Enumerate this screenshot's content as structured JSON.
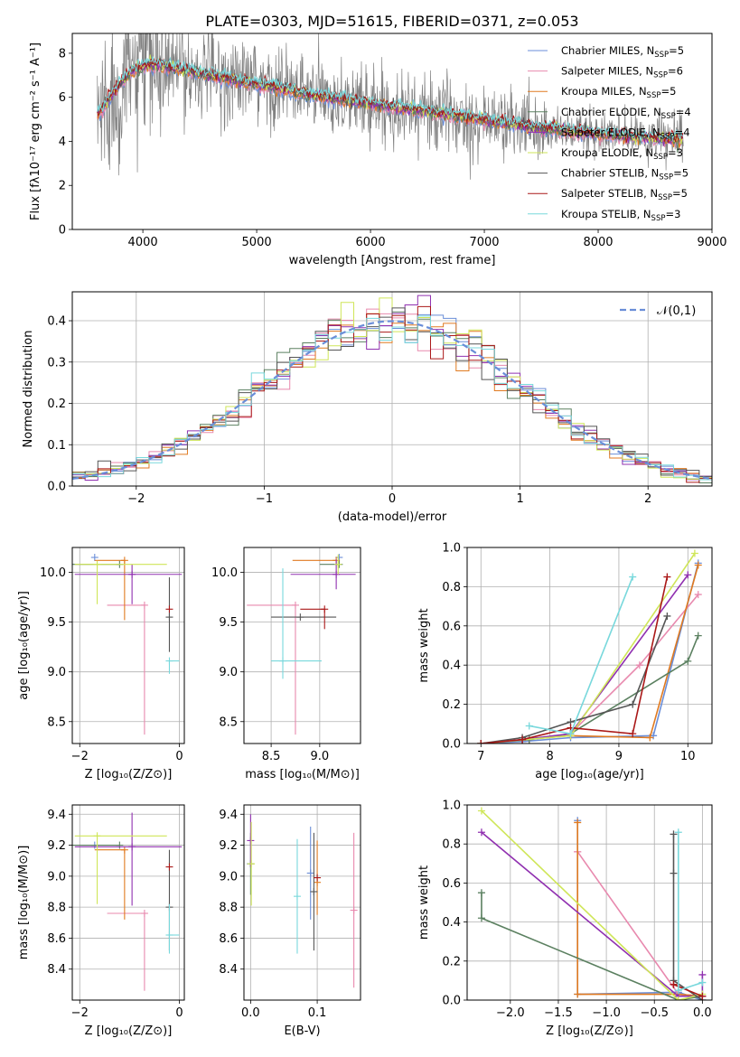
{
  "figure": {
    "title": "PLATE=0303, MJD=51615, FIBERID=0371, z=0.053"
  },
  "colors": {
    "data": "#808080",
    "models": [
      "#6a8ed8",
      "#e889ae",
      "#e07a20",
      "#5b8060",
      "#c060c8",
      "#cfe658",
      "#555555",
      "#aa1818",
      "#78d8dc"
    ],
    "series_hex": [
      "#6a8ed8",
      "#e889ae",
      "#e07a20",
      "#5b8060",
      "#9030b0",
      "#cfe658",
      "#555555",
      "#aa1818",
      "#78d8dc"
    ]
  },
  "chart_data": [
    {
      "id": "spectrum",
      "type": "line",
      "title": "PLATE=0303, MJD=51615, FIBERID=0371, z=0.053",
      "xlabel": "wavelength [Angstrom, rest frame]",
      "ylabel": "Flux [fλ10⁻¹⁷ erg cm⁻² s⁻¹ A⁻¹]",
      "xlim": [
        3380,
        9000
      ],
      "ylim": [
        0,
        8.9
      ],
      "xticks": [
        4000,
        5000,
        6000,
        7000,
        8000,
        9000
      ],
      "yticks": [
        0,
        2,
        4,
        6,
        8
      ],
      "grid": false,
      "legend_position": "top-right",
      "continuum": {
        "x": [
          3600,
          3700,
          3800,
          3900,
          4000,
          4100,
          4300,
          4500,
          4700,
          4900,
          5100,
          5300,
          5500,
          5700,
          5900,
          6100,
          6300,
          6500,
          6700,
          6900,
          7100,
          7300,
          7500,
          7700,
          7900,
          8100,
          8300,
          8500,
          8750
        ],
        "y": [
          5.2,
          5.9,
          6.6,
          7.2,
          7.4,
          7.5,
          7.3,
          7.1,
          6.9,
          6.7,
          6.5,
          6.3,
          6.1,
          5.95,
          5.8,
          5.65,
          5.5,
          5.35,
          5.2,
          5.05,
          4.9,
          4.75,
          4.6,
          4.5,
          4.4,
          4.3,
          4.2,
          4.15,
          4.1
        ]
      },
      "series": [
        {
          "name": "Chabrier MILES, N_SSP=5"
        },
        {
          "name": "Salpeter MILES, N_SSP=6"
        },
        {
          "name": "Kroupa MILES, N_SSP=5"
        },
        {
          "name": "Chabrier ELODIE, N_SSP=4"
        },
        {
          "name": "Salpeter ELODIE, N_SSP=4"
        },
        {
          "name": "Kroupa ELODIE, N_SSP=3"
        },
        {
          "name": "Chabrier STELIB, N_SSP=5"
        },
        {
          "name": "Salpeter STELIB, N_SSP=5"
        },
        {
          "name": "Kroupa STELIB, N_SSP=3"
        }
      ],
      "legend_labels": [
        {
          "base": "Chabrier MILES, N",
          "sub": "SSP",
          "tail": "=5"
        },
        {
          "base": "Salpeter MILES, N",
          "sub": "SSP",
          "tail": "=6"
        },
        {
          "base": "Kroupa MILES, N",
          "sub": "SSP",
          "tail": "=5"
        },
        {
          "base": "Chabrier ELODIE, N",
          "sub": "SSP",
          "tail": "=4"
        },
        {
          "base": "Salpeter ELODIE, N",
          "sub": "SSP",
          "tail": "=4"
        },
        {
          "base": "Kroupa ELODIE, N",
          "sub": "SSP",
          "tail": "=3"
        },
        {
          "base": "Chabrier STELIB, N",
          "sub": "SSP",
          "tail": "=5"
        },
        {
          "base": "Salpeter STELIB, N",
          "sub": "SSP",
          "tail": "=5"
        },
        {
          "base": "Kroupa STELIB, N",
          "sub": "SSP",
          "tail": "=3"
        }
      ]
    },
    {
      "id": "residuals",
      "type": "line",
      "xlabel": "(data-model)/error",
      "ylabel": "Normed distribution",
      "xlim": [
        -2.5,
        2.5
      ],
      "ylim": [
        0,
        0.47
      ],
      "xticks": [
        -2,
        -1,
        0,
        1,
        2
      ],
      "yticks": [
        0.0,
        0.1,
        0.2,
        0.3,
        0.4
      ],
      "grid": true,
      "legend_position": "top-right",
      "reference_curve": {
        "name": "𝒩(0,1)",
        "mean": 0,
        "sigma": 1
      },
      "bin_width": 0.1,
      "x_range": [
        -2.5,
        2.5
      ]
    },
    {
      "id": "age_vs_Z",
      "type": "scatter",
      "xlabel": "Z [log₁₀(Z/Z⊙)]",
      "ylabel": "age  [log₁₀(age/yr)]",
      "xlim": [
        -2.15,
        0.1
      ],
      "ylim": [
        8.28,
        10.25
      ],
      "xticks": [
        -2,
        0
      ],
      "yticks": [
        8.5,
        9.0,
        9.5,
        10.0
      ],
      "grid": true,
      "points": [
        {
          "x": -1.7,
          "y": 10.15,
          "xerr": [
            0.0,
            0.0
          ],
          "yerr": [
            0.0,
            0.0
          ]
        },
        {
          "x": -0.7,
          "y": 9.67,
          "xerr": [
            0.75,
            0.0
          ],
          "yerr": [
            1.3,
            0.0
          ]
        },
        {
          "x": -1.1,
          "y": 10.12,
          "xerr": [
            0.6,
            0.0
          ],
          "yerr": [
            0.6,
            0.0
          ]
        },
        {
          "x": -1.2,
          "y": 10.08,
          "xerr": [
            0.95,
            0.0
          ],
          "yerr": [
            0.0,
            0.0
          ]
        },
        {
          "x": -0.95,
          "y": 9.98,
          "xerr": [
            1.15,
            1.0
          ],
          "yerr": [
            0.3,
            0.1
          ]
        },
        {
          "x": -1.65,
          "y": 10.08,
          "xerr": [
            0.45,
            1.4
          ],
          "yerr": [
            0.4,
            0.0
          ]
        },
        {
          "x": -0.2,
          "y": 9.55,
          "xerr": [
            0.0,
            0.0
          ],
          "yerr": [
            0.35,
            0.4
          ]
        },
        {
          "x": -0.2,
          "y": 9.63,
          "xerr": [
            0.0,
            0.0
          ],
          "yerr": [
            0.0,
            0.0
          ]
        },
        {
          "x": -0.2,
          "y": 9.11,
          "xerr": [
            0.0,
            0.2
          ],
          "yerr": [
            0.13,
            0.0
          ]
        }
      ]
    },
    {
      "id": "age_vs_mass",
      "type": "scatter",
      "xlabel": "mass [log₁₀(M/M⊙)]",
      "ylabel": "",
      "xlim": [
        8.22,
        9.42
      ],
      "ylim": [
        8.28,
        10.25
      ],
      "xticks": [
        8.5,
        9.0
      ],
      "yticks": [
        8.5,
        9.0,
        9.5,
        10.0
      ],
      "grid": true,
      "points": [
        {
          "x": 9.2,
          "y": 10.15,
          "xerr": [
            0.0,
            0.0
          ],
          "yerr": [
            0.0,
            0.0
          ]
        },
        {
          "x": 8.75,
          "y": 9.67,
          "xerr": [
            0.5,
            0.0
          ],
          "yerr": [
            1.3,
            0.0
          ]
        },
        {
          "x": 9.17,
          "y": 10.12,
          "xerr": [
            0.45,
            0.0
          ],
          "yerr": [
            0.0,
            0.0
          ]
        },
        {
          "x": 9.2,
          "y": 10.08,
          "xerr": [
            0.2,
            0.0
          ],
          "yerr": [
            0.0,
            0.0
          ]
        },
        {
          "x": 9.17,
          "y": 9.98,
          "xerr": [
            0.47,
            0.2
          ],
          "yerr": [
            0.15,
            0.15
          ]
        },
        {
          "x": 9.19,
          "y": 10.08,
          "xerr": [
            0.0,
            0.0
          ],
          "yerr": [
            0.1,
            0.1
          ]
        },
        {
          "x": 8.8,
          "y": 9.55,
          "xerr": [
            0.3,
            0.37
          ],
          "yerr": [
            0.0,
            0.0
          ]
        },
        {
          "x": 9.05,
          "y": 9.63,
          "xerr": [
            0.25,
            0.0
          ],
          "yerr": [
            0.2,
            0.0
          ]
        },
        {
          "x": 8.62,
          "y": 9.11,
          "xerr": [
            0.12,
            0.4
          ],
          "yerr": [
            0.18,
            0.93
          ]
        }
      ]
    },
    {
      "id": "mass_weight_vs_age",
      "type": "line",
      "xlabel": "age  [log₁₀(age/yr)]",
      "ylabel": "mass weight",
      "xlim": [
        6.8,
        10.35
      ],
      "ylim": [
        0,
        1.0
      ],
      "xticks": [
        7,
        8,
        9,
        10
      ],
      "yticks": [
        0.0,
        0.2,
        0.4,
        0.6,
        0.8,
        1.0
      ],
      "grid": true,
      "series": [
        {
          "x": [
            7.0,
            7.6,
            8.3,
            9.5,
            10.15
          ],
          "y": [
            0.0,
            0.01,
            0.03,
            0.04,
            0.92
          ]
        },
        {
          "x": [
            7.0,
            7.7,
            8.3,
            9.3,
            10.15
          ],
          "y": [
            0.0,
            0.02,
            0.05,
            0.4,
            0.76
          ]
        },
        {
          "x": [
            7.0,
            7.6,
            8.3,
            9.45,
            10.15
          ],
          "y": [
            0.0,
            0.02,
            0.04,
            0.03,
            0.91
          ]
        },
        {
          "x": [
            7.0,
            7.7,
            8.3,
            10.0,
            10.15
          ],
          "y": [
            0.0,
            0.02,
            0.05,
            0.42,
            0.55
          ]
        },
        {
          "x": [
            7.0,
            7.6,
            8.3,
            10.0
          ],
          "y": [
            0.0,
            0.02,
            0.05,
            0.86
          ]
        },
        {
          "x": [
            7.0,
            8.3,
            10.1
          ],
          "y": [
            0.0,
            0.04,
            0.97
          ]
        },
        {
          "x": [
            7.0,
            7.6,
            8.3,
            9.2,
            9.7
          ],
          "y": [
            0.0,
            0.03,
            0.11,
            0.2,
            0.65
          ]
        },
        {
          "x": [
            7.0,
            7.6,
            8.3,
            9.2,
            9.7
          ],
          "y": [
            0.0,
            0.02,
            0.08,
            0.05,
            0.85
          ]
        },
        {
          "x": [
            7.7,
            8.3,
            9.2
          ],
          "y": [
            0.09,
            0.05,
            0.85
          ]
        }
      ]
    },
    {
      "id": "mass_vs_Z",
      "type": "scatter",
      "xlabel": "Z [log₁₀(Z/Z⊙)]",
      "ylabel": "mass [log₁₀(M/M⊙)]",
      "xlim": [
        -2.15,
        0.1
      ],
      "ylim": [
        8.2,
        9.46
      ],
      "xticks": [
        -2,
        0
      ],
      "yticks": [
        8.4,
        8.6,
        8.8,
        9.0,
        9.2,
        9.4
      ],
      "grid": true,
      "points": [
        {
          "x": -1.7,
          "y": 9.2,
          "xerr": [
            0.0,
            0.0
          ],
          "yerr": [
            0.0,
            0.0
          ]
        },
        {
          "x": -0.7,
          "y": 8.76,
          "xerr": [
            0.75,
            0.0
          ],
          "yerr": [
            0.5,
            0.0
          ]
        },
        {
          "x": -1.1,
          "y": 9.17,
          "xerr": [
            0.6,
            0.0
          ],
          "yerr": [
            0.45,
            0.0
          ]
        },
        {
          "x": -1.2,
          "y": 9.2,
          "xerr": [
            0.95,
            0.0
          ],
          "yerr": [
            0.0,
            0.0
          ]
        },
        {
          "x": -0.95,
          "y": 9.19,
          "xerr": [
            1.15,
            1.0
          ],
          "yerr": [
            0.38,
            0.22
          ]
        },
        {
          "x": -1.65,
          "y": 9.26,
          "xerr": [
            0.45,
            1.4
          ],
          "yerr": [
            0.44,
            0.0
          ]
        },
        {
          "x": -0.2,
          "y": 8.8,
          "xerr": [
            0.0,
            0.0
          ],
          "yerr": [
            0.28,
            0.37
          ]
        },
        {
          "x": -0.2,
          "y": 9.06,
          "xerr": [
            0.0,
            0.0
          ],
          "yerr": [
            0.0,
            0.0
          ]
        },
        {
          "x": -0.2,
          "y": 8.62,
          "xerr": [
            0.0,
            0.2
          ],
          "yerr": [
            0.12,
            0.2
          ]
        }
      ]
    },
    {
      "id": "mass_vs_EBV",
      "type": "scatter",
      "xlabel": "E(B-V)",
      "ylabel": "",
      "xlim": [
        -0.01,
        0.165
      ],
      "ylim": [
        8.2,
        9.46
      ],
      "xticks": [
        0.0,
        0.1
      ],
      "yticks": [
        8.4,
        8.6,
        8.8,
        9.0,
        9.2,
        9.4
      ],
      "grid": true,
      "points": [
        {
          "x": 0.09,
          "y": 9.02,
          "xerr": [
            0.0,
            0.0
          ],
          "yerr": [
            0.3,
            0.3
          ]
        },
        {
          "x": 0.155,
          "y": 8.78,
          "xerr": [
            0.0,
            0.0
          ],
          "yerr": [
            0.5,
            0.5
          ]
        },
        {
          "x": 0.1,
          "y": 8.96,
          "xerr": [
            0.0,
            0.0
          ],
          "yerr": [
            0.21,
            0.27
          ]
        },
        {
          "x": 0.0,
          "y": 9.08,
          "xerr": [
            0.0,
            0.0
          ],
          "yerr": [
            0.2,
            0.2
          ]
        },
        {
          "x": 0.0,
          "y": 9.23,
          "xerr": [
            0.0,
            0.0
          ],
          "yerr": [
            0.17,
            0.17
          ]
        },
        {
          "x": 0.001,
          "y": 9.08,
          "xerr": [
            0.0,
            0.0
          ],
          "yerr": [
            0.27,
            0.27
          ]
        },
        {
          "x": 0.095,
          "y": 8.9,
          "xerr": [
            0.0,
            0.0
          ],
          "yerr": [
            0.38,
            0.38
          ]
        },
        {
          "x": 0.1,
          "y": 8.99,
          "xerr": [
            0.0,
            0.0
          ],
          "yerr": [
            0.0,
            0.0
          ]
        },
        {
          "x": 0.07,
          "y": 8.87,
          "xerr": [
            0.0,
            0.0
          ],
          "yerr": [
            0.37,
            0.37
          ]
        }
      ]
    },
    {
      "id": "mass_weight_vs_Z",
      "type": "line",
      "xlabel": "Z [log₁₀(Z/Z⊙)]",
      "ylabel": "mass weight",
      "xlim": [
        -2.45,
        0.1
      ],
      "ylim": [
        0,
        1.0
      ],
      "xticks": [
        -2.0,
        -1.5,
        -1.0,
        -0.5,
        0.0
      ],
      "yticks": [
        0.0,
        0.2,
        0.4,
        0.6,
        0.8,
        1.0
      ],
      "grid": true,
      "series": [
        {
          "x": [
            -1.3,
            -1.3,
            -0.25,
            0.0
          ],
          "y": [
            0.92,
            0.03,
            0.04,
            0.0
          ]
        },
        {
          "x": [
            -1.3,
            -1.3,
            -0.25,
            0.0
          ],
          "y": [
            0.76,
            0.76,
            0.03,
            0.02
          ]
        },
        {
          "x": [
            -1.3,
            -1.3,
            -0.25,
            0.0
          ],
          "y": [
            0.91,
            0.03,
            0.03,
            0.02
          ]
        },
        {
          "x": [
            -2.3,
            -2.3,
            -0.25,
            0.0
          ],
          "y": [
            0.55,
            0.42,
            0.0,
            0.02
          ]
        },
        {
          "x": [
            -2.3,
            -0.25,
            0.0,
            0.0
          ],
          "y": [
            0.86,
            0.02,
            0.02,
            0.13
          ]
        },
        {
          "x": [
            -2.3,
            -0.25,
            0.0
          ],
          "y": [
            0.97,
            0.0,
            0.03
          ]
        },
        {
          "x": [
            -0.3,
            -0.3,
            -0.3,
            0.0
          ],
          "y": [
            0.85,
            0.65,
            0.1,
            0.0
          ]
        },
        {
          "x": [
            -0.3,
            -0.3,
            0.0
          ],
          "y": [
            0.08,
            0.08,
            0.02
          ]
        },
        {
          "x": [
            -0.25,
            -0.25,
            0.0
          ],
          "y": [
            0.86,
            0.05,
            0.09
          ]
        }
      ]
    }
  ]
}
